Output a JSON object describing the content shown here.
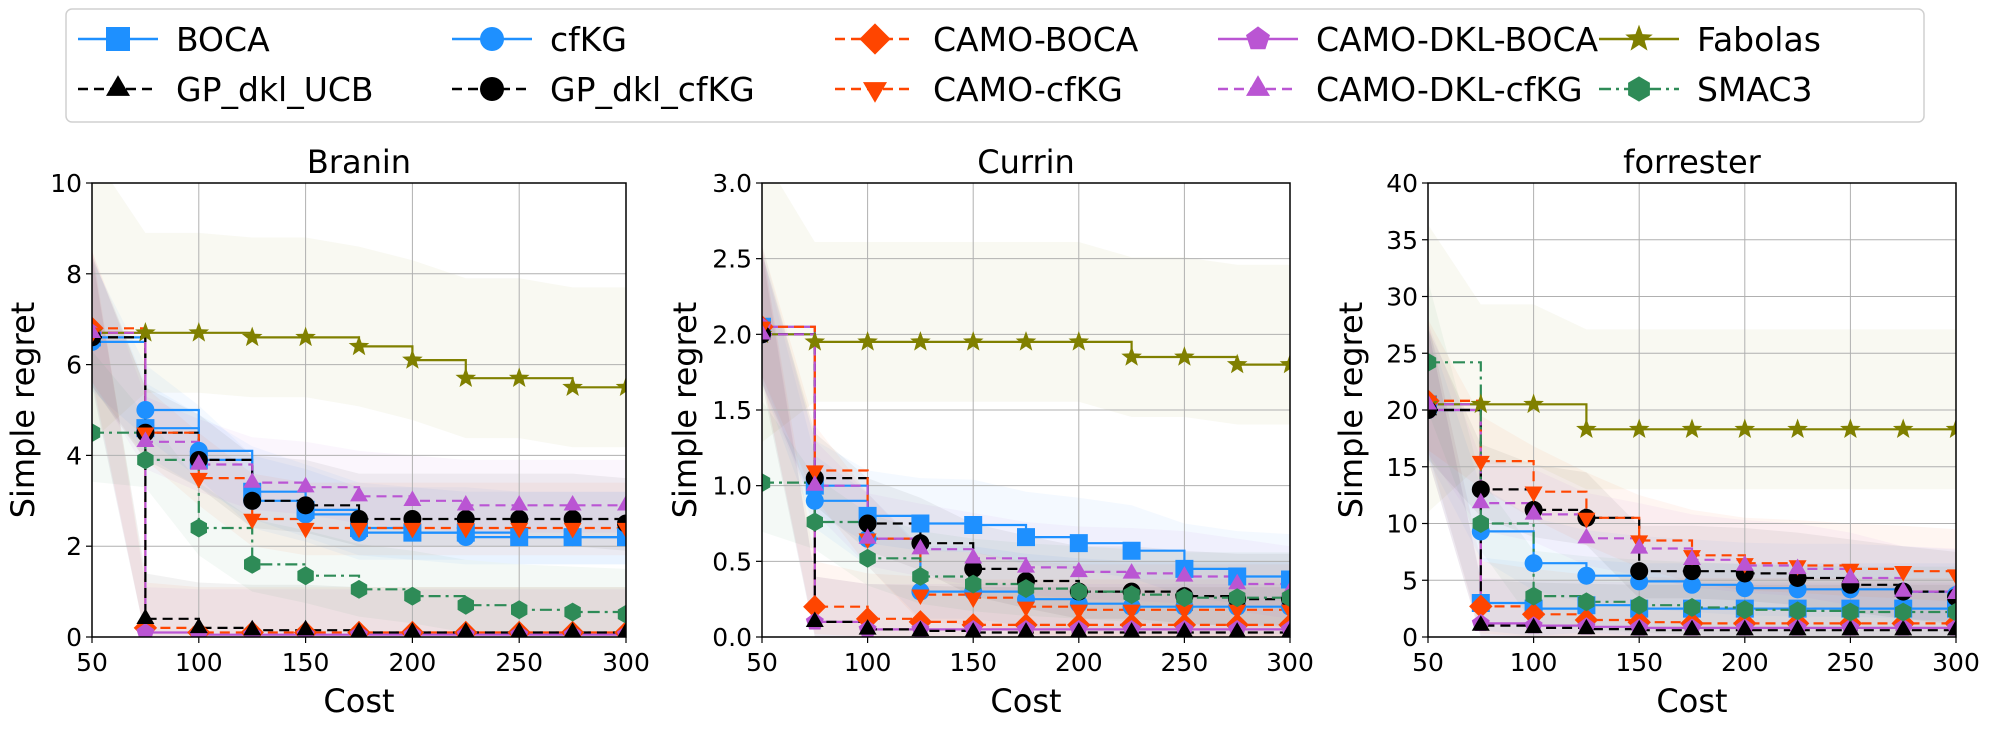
{
  "legend": {
    "entries": [
      {
        "label": "BOCA",
        "key": "boca"
      },
      {
        "label": "cfKG",
        "key": "cfkg"
      },
      {
        "label": "CAMO-BOCA",
        "key": "camo_boca"
      },
      {
        "label": "CAMO-DKL-BOCA",
        "key": "camo_dkl_boca"
      },
      {
        "label": "Fabolas",
        "key": "fabolas"
      },
      {
        "label": "GP_dkl_UCB",
        "key": "gp_dkl_ucb"
      },
      {
        "label": "GP_dkl_cfKG",
        "key": "gp_dkl_cfkg"
      },
      {
        "label": "CAMO-cfKG",
        "key": "camo_cfkg"
      },
      {
        "label": "CAMO-DKL-cfKG",
        "key": "camo_dkl_cfkg"
      },
      {
        "label": "SMAC3",
        "key": "smac3"
      }
    ],
    "placement": "top-center"
  },
  "styles": {
    "boca": {
      "color": "#1e90ff",
      "dash": "solid",
      "marker": "square"
    },
    "cfkg": {
      "color": "#1e90ff",
      "dash": "solid",
      "marker": "circle"
    },
    "camo_boca": {
      "color": "#ff4500",
      "dash": "dashed",
      "marker": "diamond"
    },
    "camo_dkl_boca": {
      "color": "#ba55d3",
      "dash": "solid",
      "marker": "pentagon"
    },
    "fabolas": {
      "color": "#808000",
      "dash": "solid",
      "marker": "star"
    },
    "gp_dkl_ucb": {
      "color": "#000000",
      "dash": "dashed",
      "marker": "triangle-up"
    },
    "gp_dkl_cfkg": {
      "color": "#000000",
      "dash": "dashed",
      "marker": "circle"
    },
    "camo_cfkg": {
      "color": "#ff4500",
      "dash": "dashed",
      "marker": "triangle-down"
    },
    "camo_dkl_cfkg": {
      "color": "#ba55d3",
      "dash": "dashed",
      "marker": "triangle-up"
    },
    "smac3": {
      "color": "#2e8b57",
      "dash": "dashdot",
      "marker": "hexagon"
    }
  },
  "chart_data": [
    {
      "type": "line",
      "title": "Branin",
      "xlabel": "Cost",
      "ylabel": "Simple regret",
      "xlim": [
        50,
        300
      ],
      "ylim": [
        0,
        10
      ],
      "xticks": [
        "50",
        "100",
        "150",
        "200",
        "250",
        "300"
      ],
      "yticks": [
        "0",
        "2",
        "4",
        "6",
        "8",
        "10"
      ],
      "grid": true,
      "x": [
        50,
        75,
        100,
        125,
        150,
        175,
        200,
        225,
        250,
        275,
        300
      ],
      "series": [
        {
          "key": "boca",
          "values": [
            6.6,
            4.6,
            3.9,
            3.2,
            2.8,
            2.4,
            2.3,
            2.3,
            2.2,
            2.2,
            2.2
          ]
        },
        {
          "key": "cfkg",
          "values": [
            6.5,
            5.0,
            4.1,
            3.0,
            2.7,
            2.3,
            2.3,
            2.2,
            2.2,
            2.2,
            2.2
          ]
        },
        {
          "key": "camo_boca",
          "values": [
            6.8,
            0.2,
            0.1,
            0.1,
            0.1,
            0.1,
            0.1,
            0.1,
            0.1,
            0.1,
            0.1
          ]
        },
        {
          "key": "camo_dkl_boca",
          "values": [
            6.7,
            0.1,
            0.05,
            0.05,
            0.05,
            0.05,
            0.05,
            0.05,
            0.05,
            0.05,
            0.05
          ]
        },
        {
          "key": "fabolas",
          "values": [
            6.7,
            6.7,
            6.7,
            6.6,
            6.6,
            6.4,
            6.1,
            5.7,
            5.7,
            5.5,
            5.5
          ]
        },
        {
          "key": "gp_dkl_ucb",
          "values": [
            6.6,
            0.4,
            0.2,
            0.15,
            0.15,
            0.1,
            0.1,
            0.1,
            0.1,
            0.1,
            0.1
          ]
        },
        {
          "key": "gp_dkl_cfkg",
          "values": [
            6.6,
            4.5,
            3.9,
            3.0,
            2.9,
            2.6,
            2.6,
            2.6,
            2.6,
            2.6,
            2.5
          ]
        },
        {
          "key": "camo_cfkg",
          "values": [
            6.7,
            4.5,
            3.5,
            2.6,
            2.4,
            2.4,
            2.4,
            2.4,
            2.4,
            2.4,
            2.4
          ]
        },
        {
          "key": "camo_dkl_cfkg",
          "values": [
            6.7,
            4.3,
            3.8,
            3.4,
            3.3,
            3.1,
            3.0,
            2.9,
            2.9,
            2.9,
            2.9
          ]
        },
        {
          "key": "smac3",
          "values": [
            4.5,
            3.9,
            2.4,
            1.6,
            1.35,
            1.05,
            0.9,
            0.7,
            0.6,
            0.55,
            0.5
          ]
        }
      ]
    },
    {
      "type": "line",
      "title": "Currin",
      "xlabel": "Cost",
      "ylabel": "Simple regret",
      "xlim": [
        50,
        300
      ],
      "ylim": [
        0,
        3.0
      ],
      "xticks": [
        "50",
        "100",
        "150",
        "200",
        "250",
        "300"
      ],
      "yticks": [
        "0.0",
        "0.5",
        "1.0",
        "1.5",
        "2.0",
        "2.5",
        "3.0"
      ],
      "grid": true,
      "x": [
        50,
        75,
        100,
        125,
        150,
        175,
        200,
        225,
        250,
        275,
        300
      ],
      "series": [
        {
          "key": "boca",
          "values": [
            2.05,
            1.0,
            0.8,
            0.75,
            0.74,
            0.66,
            0.62,
            0.57,
            0.45,
            0.4,
            0.38
          ]
        },
        {
          "key": "cfkg",
          "values": [
            2.0,
            0.9,
            0.65,
            0.3,
            0.3,
            0.25,
            0.22,
            0.2,
            0.2,
            0.2,
            0.2
          ]
        },
        {
          "key": "camo_boca",
          "values": [
            2.05,
            0.2,
            0.12,
            0.1,
            0.08,
            0.08,
            0.08,
            0.08,
            0.08,
            0.08,
            0.08
          ]
        },
        {
          "key": "camo_dkl_boca",
          "values": [
            2.05,
            0.1,
            0.05,
            0.05,
            0.05,
            0.05,
            0.05,
            0.05,
            0.05,
            0.05,
            0.05
          ]
        },
        {
          "key": "fabolas",
          "values": [
            2.0,
            1.95,
            1.95,
            1.95,
            1.95,
            1.95,
            1.95,
            1.85,
            1.85,
            1.8,
            1.8
          ]
        },
        {
          "key": "gp_dkl_ucb",
          "values": [
            2.0,
            0.1,
            0.05,
            0.04,
            0.03,
            0.03,
            0.03,
            0.03,
            0.03,
            0.03,
            0.03
          ]
        },
        {
          "key": "gp_dkl_cfkg",
          "values": [
            2.0,
            1.05,
            0.75,
            0.62,
            0.45,
            0.37,
            0.3,
            0.3,
            0.27,
            0.25,
            0.25
          ]
        },
        {
          "key": "camo_cfkg",
          "values": [
            2.05,
            1.1,
            0.65,
            0.28,
            0.26,
            0.2,
            0.18,
            0.18,
            0.18,
            0.18,
            0.18
          ]
        },
        {
          "key": "camo_dkl_cfkg",
          "values": [
            2.0,
            1.0,
            0.65,
            0.58,
            0.52,
            0.46,
            0.43,
            0.42,
            0.4,
            0.35,
            0.3
          ]
        },
        {
          "key": "smac3",
          "values": [
            1.02,
            0.76,
            0.52,
            0.4,
            0.35,
            0.32,
            0.3,
            0.28,
            0.26,
            0.26,
            0.26
          ]
        }
      ]
    },
    {
      "type": "line",
      "title": "forrester",
      "xlabel": "Cost",
      "ylabel": "Simple regret",
      "xlim": [
        50,
        300
      ],
      "ylim": [
        0,
        40
      ],
      "xticks": [
        "50",
        "100",
        "150",
        "200",
        "250",
        "300"
      ],
      "yticks": [
        "0",
        "5",
        "10",
        "15",
        "20",
        "25",
        "30",
        "35",
        "40"
      ],
      "grid": true,
      "x": [
        50,
        75,
        100,
        125,
        150,
        175,
        200,
        225,
        250,
        275,
        300
      ],
      "series": [
        {
          "key": "boca",
          "values": [
            20.5,
            3.0,
            2.5,
            2.8,
            2.5,
            2.5,
            2.5,
            2.5,
            2.5,
            2.5,
            2.5
          ]
        },
        {
          "key": "cfkg",
          "values": [
            20.0,
            9.3,
            6.5,
            5.4,
            4.9,
            4.6,
            4.3,
            4.2,
            4.2,
            4.0,
            3.7
          ]
        },
        {
          "key": "camo_boca",
          "values": [
            20.8,
            2.7,
            2.0,
            1.5,
            1.3,
            1.2,
            1.2,
            1.2,
            1.2,
            1.2,
            1.2
          ]
        },
        {
          "key": "camo_dkl_boca",
          "values": [
            20.0,
            1.2,
            1.0,
            0.9,
            0.8,
            0.8,
            0.8,
            0.8,
            0.8,
            0.8,
            0.8
          ]
        },
        {
          "key": "fabolas",
          "values": [
            20.5,
            20.5,
            20.5,
            18.3,
            18.3,
            18.3,
            18.3,
            18.3,
            18.3,
            18.3,
            18.3
          ]
        },
        {
          "key": "gp_dkl_ucb",
          "values": [
            20.0,
            1.0,
            0.8,
            0.7,
            0.6,
            0.6,
            0.6,
            0.6,
            0.6,
            0.6,
            0.6
          ]
        },
        {
          "key": "gp_dkl_cfkg",
          "values": [
            20.0,
            13.0,
            11.2,
            10.5,
            5.8,
            5.8,
            5.6,
            5.2,
            4.6,
            4.0,
            3.5
          ]
        },
        {
          "key": "camo_cfkg",
          "values": [
            20.8,
            15.5,
            12.8,
            10.5,
            8.5,
            7.2,
            6.5,
            6.3,
            6.0,
            5.8,
            5.5
          ]
        },
        {
          "key": "camo_dkl_cfkg",
          "values": [
            20.5,
            11.8,
            10.8,
            8.7,
            7.8,
            6.8,
            6.3,
            6.0,
            5.2,
            4.0,
            3.8
          ]
        },
        {
          "key": "smac3",
          "values": [
            24.2,
            10.0,
            3.6,
            3.1,
            2.8,
            2.6,
            2.4,
            2.3,
            2.2,
            2.2,
            2.2
          ]
        }
      ]
    }
  ]
}
